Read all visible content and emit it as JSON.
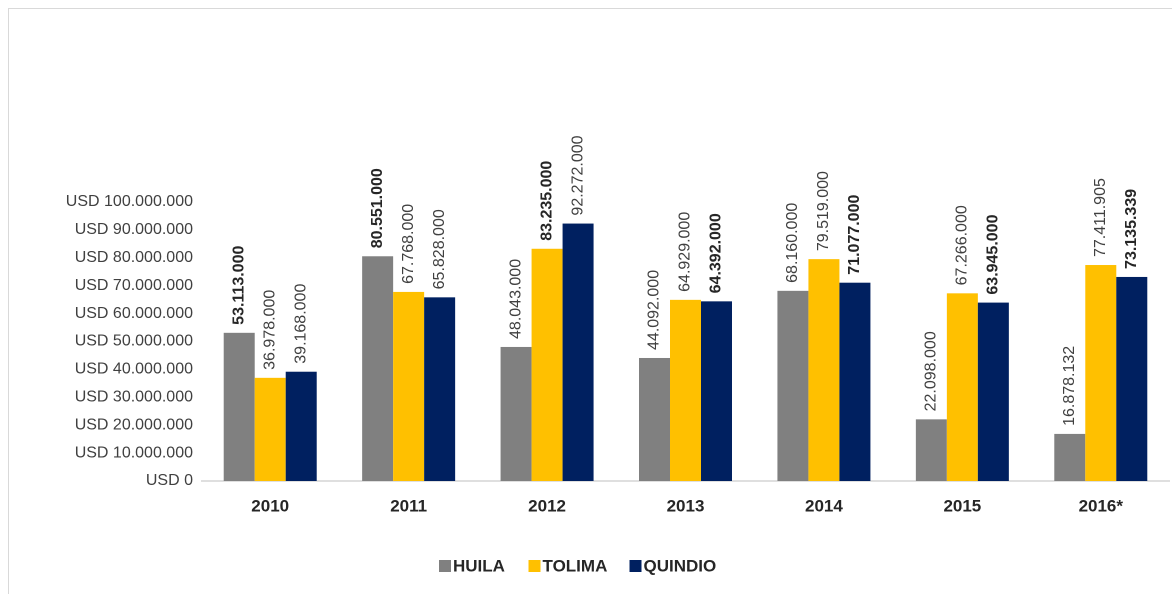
{
  "chart_data": {
    "type": "bar",
    "categories": [
      "2010",
      "2011",
      "2012",
      "2013",
      "2014",
      "2015",
      "2016*"
    ],
    "series": [
      {
        "name": "HUILA",
        "color": "#808080",
        "values": [
          53113000,
          80551000,
          48043000,
          44092000,
          68160000,
          22098000,
          16878132
        ],
        "value_labels": [
          "53.113.000",
          "80.551.000",
          "48.043.000",
          "44.092.000",
          "68.160.000",
          "22.098.000",
          "16.878.132"
        ],
        "bold": [
          true,
          true,
          false,
          false,
          false,
          false,
          false
        ]
      },
      {
        "name": "TOLIMA",
        "color": "#ffc000",
        "values": [
          36978000,
          67768000,
          83235000,
          64929000,
          79519000,
          67266000,
          77411905
        ],
        "value_labels": [
          "36.978.000",
          "67.768.000",
          "83.235.000",
          "64.929.000",
          "79.519.000",
          "67.266.000",
          "77.411.905"
        ],
        "bold": [
          false,
          false,
          true,
          false,
          false,
          false,
          false
        ]
      },
      {
        "name": "QUINDIO",
        "color": "#002060",
        "values": [
          39168000,
          65828000,
          92272000,
          64392000,
          71077000,
          63945000,
          73135339
        ],
        "value_labels": [
          "39.168.000",
          "65.828.000",
          "92.272.000",
          "64.392.000",
          "71.077.000",
          "63.945.000",
          "73.135.339"
        ],
        "bold": [
          false,
          false,
          false,
          true,
          true,
          true,
          true
        ]
      }
    ],
    "ylim": [
      0,
      100000000
    ],
    "yticks": [
      {
        "value": 0,
        "label": "USD 0"
      },
      {
        "value": 10000000,
        "label": "USD 10.000.000"
      },
      {
        "value": 20000000,
        "label": "USD 20.000.000"
      },
      {
        "value": 30000000,
        "label": "USD 30.000.000"
      },
      {
        "value": 40000000,
        "label": "USD 40.000.000"
      },
      {
        "value": 50000000,
        "label": "USD 50.000.000"
      },
      {
        "value": 60000000,
        "label": "USD 60.000.000"
      },
      {
        "value": 70000000,
        "label": "USD 70.000.000"
      },
      {
        "value": 80000000,
        "label": "USD 80.000.000"
      },
      {
        "value": 90000000,
        "label": "USD 90.000.000"
      },
      {
        "value": 100000000,
        "label": "USD 100.000.000"
      }
    ],
    "grid": false,
    "legend": "bottom"
  }
}
